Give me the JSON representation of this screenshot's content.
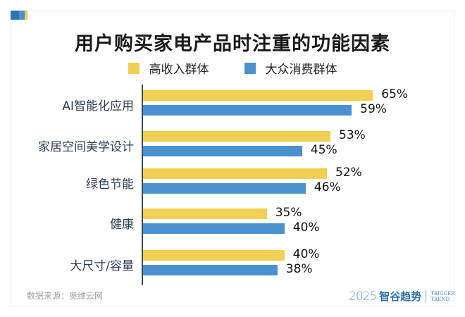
{
  "title": "用户购买家电产品时注重的功能因素",
  "legend": [
    {
      "label": "高收入群体",
      "color": "#f0cf52"
    },
    {
      "label": "大众消费群体",
      "color": "#4a92cf"
    }
  ],
  "footer": {
    "source": "数据来源：奥维云网",
    "logo_year": "2025",
    "logo_cn": "智谷趋势",
    "logo_en_1": "TRIGGER",
    "logo_en_2": "TREND"
  },
  "rows": [
    {
      "category": "AI智能化应用",
      "high": "65%",
      "mass": "59%"
    },
    {
      "category": "家居空间美学设计",
      "high": "53%",
      "mass": "45%"
    },
    {
      "category": "绿色节能",
      "high": "52%",
      "mass": "46%"
    },
    {
      "category": "健康",
      "high": "35%",
      "mass": "40%"
    },
    {
      "category": "大尺寸/容量",
      "high": "40%",
      "mass": "38%"
    }
  ],
  "chart_data": {
    "type": "bar",
    "orientation": "horizontal",
    "title": "用户购买家电产品时注重的功能因素",
    "categories": [
      "AI智能化应用",
      "家居空间美学设计",
      "绿色节能",
      "健康",
      "大尺寸/容量"
    ],
    "series": [
      {
        "name": "高收入群体",
        "color": "#f0cf52",
        "values": [
          65,
          53,
          52,
          35,
          40
        ]
      },
      {
        "name": "大众消费群体",
        "color": "#4a92cf",
        "values": [
          59,
          45,
          46,
          40,
          38
        ]
      }
    ],
    "unit": "%",
    "xlabel": "",
    "ylabel": "",
    "legend_position": "top",
    "grid": false,
    "source": "数据来源：奥维云网"
  }
}
